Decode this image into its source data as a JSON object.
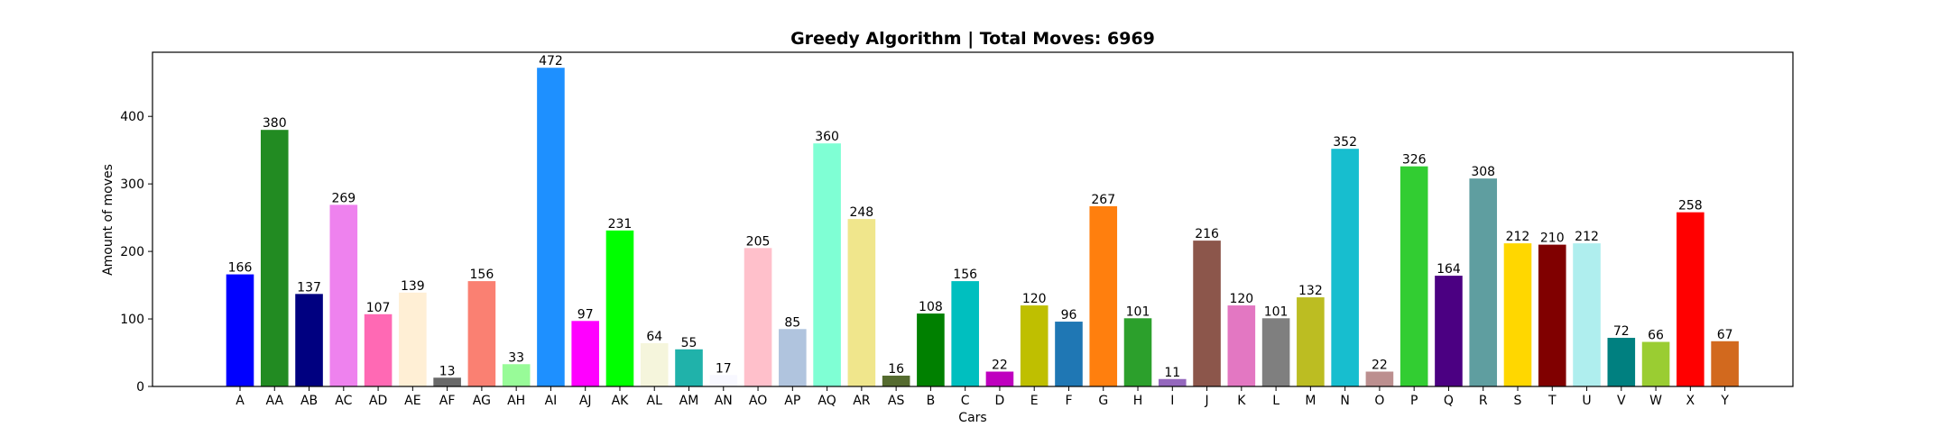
{
  "chart_data": {
    "type": "bar",
    "title": "Greedy Algorithm | Total Moves: 6969",
    "xlabel": "Cars",
    "ylabel": "Amount of moves",
    "ylim": [
      0,
      495
    ],
    "yticks": [
      0,
      100,
      200,
      300,
      400
    ],
    "grid": false,
    "legend": "none",
    "categories": [
      "A",
      "AA",
      "AB",
      "AC",
      "AD",
      "AE",
      "AF",
      "AG",
      "AH",
      "AI",
      "AJ",
      "AK",
      "AL",
      "AM",
      "AN",
      "AO",
      "AP",
      "AQ",
      "AR",
      "AS",
      "B",
      "C",
      "D",
      "E",
      "F",
      "G",
      "H",
      "I",
      "J",
      "K",
      "L",
      "M",
      "N",
      "O",
      "P",
      "Q",
      "R",
      "S",
      "T",
      "U",
      "V",
      "W",
      "X",
      "Y"
    ],
    "values": [
      166,
      380,
      137,
      269,
      107,
      139,
      13,
      156,
      33,
      472,
      97,
      231,
      64,
      55,
      17,
      205,
      85,
      360,
      248,
      16,
      108,
      156,
      22,
      120,
      96,
      267,
      101,
      11,
      216,
      120,
      101,
      132,
      352,
      22,
      326,
      164,
      308,
      212,
      210,
      212,
      72,
      66,
      258,
      67
    ],
    "colors": [
      "#0000ff",
      "#228b22",
      "#000080",
      "#ee82ee",
      "#ff69b4",
      "#ffefd5",
      "#696969",
      "#fa8072",
      "#98fb98",
      "#1e90ff",
      "#ff00ff",
      "#00ff00",
      "#f5f5dc",
      "#20b2aa",
      "#f8f8ff",
      "#ffc0cb",
      "#b0c4de",
      "#7fffd4",
      "#f0e68c",
      "#556b2f",
      "#008000",
      "#00bfbf",
      "#bf00bf",
      "#bfbf00",
      "#1f77b4",
      "#ff7f0e",
      "#2ca02c",
      "#9467bd",
      "#8c564b",
      "#e377c2",
      "#7f7f7f",
      "#bcbd22",
      "#17becf",
      "#bc8f8f",
      "#32cd32",
      "#4b0082",
      "#5f9ea0",
      "#ffd700",
      "#800000",
      "#afeeee",
      "#008080",
      "#9acd32",
      "#ff0000",
      "#d2691e"
    ]
  }
}
